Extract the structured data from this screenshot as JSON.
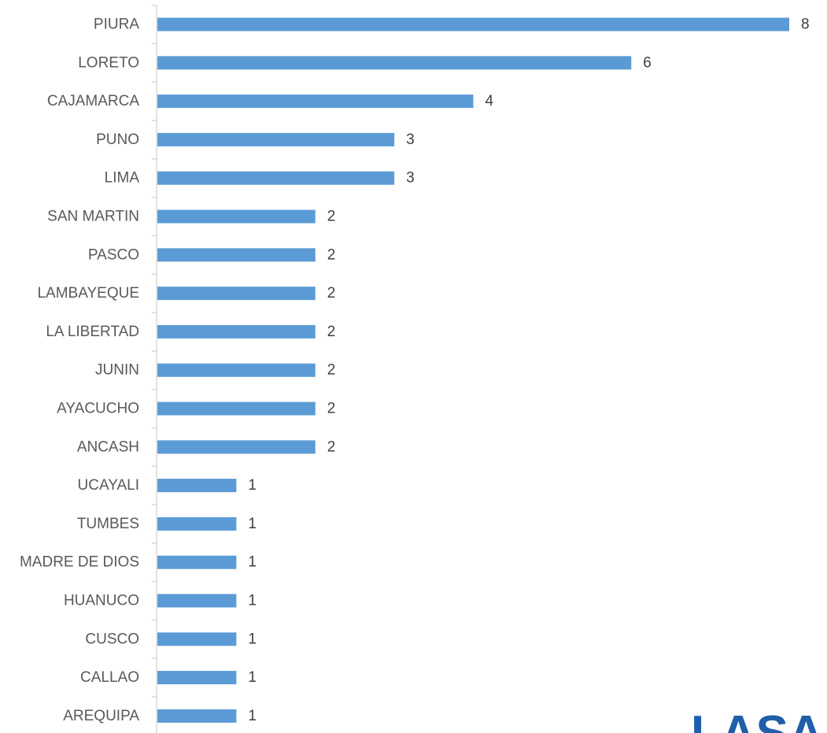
{
  "chart_data": {
    "type": "bar",
    "orientation": "horizontal",
    "categories": [
      "PIURA",
      "LORETO",
      "CAJAMARCA",
      "PUNO",
      "LIMA",
      "SAN MARTIN",
      "PASCO",
      "LAMBAYEQUE",
      "LA LIBERTAD",
      "JUNIN",
      "AYACUCHO",
      "ANCASH",
      "UCAYALI",
      "TUMBES",
      "MADRE DE DIOS",
      "HUANUCO",
      "CUSCO",
      "CALLAO",
      "AREQUIPA"
    ],
    "values": [
      8,
      6,
      4,
      3,
      3,
      2,
      2,
      2,
      2,
      2,
      2,
      2,
      1,
      1,
      1,
      1,
      1,
      1,
      1
    ],
    "title": "",
    "xlabel": "",
    "ylabel": "",
    "xlim": [
      0,
      8
    ],
    "grid": false,
    "data_labels": true,
    "bar_color": "#5b9bd5"
  },
  "logo": {
    "text": "LASA",
    "color": "#1f5ea8"
  }
}
